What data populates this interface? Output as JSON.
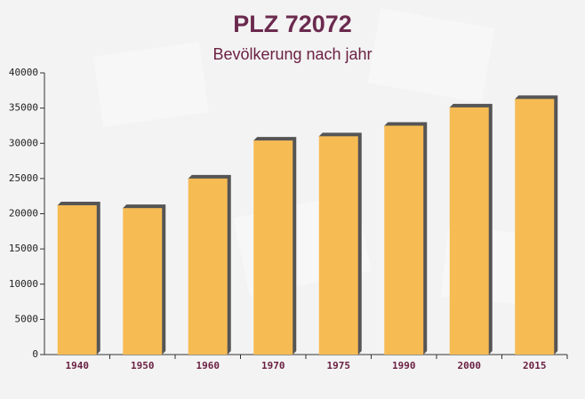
{
  "chart_data": {
    "type": "bar",
    "title": "PLZ 72072",
    "subtitle": "Bevölkerung nach jahr",
    "categories": [
      "1940",
      "1950",
      "1960",
      "1970",
      "1975",
      "1990",
      "2000",
      "2015"
    ],
    "values": [
      21200,
      20800,
      25000,
      30400,
      31000,
      32500,
      35100,
      36300
    ],
    "color": "#f7bb54",
    "ylim": [
      0,
      40000
    ],
    "yticks": [
      0,
      5000,
      10000,
      15000,
      20000,
      25000,
      30000,
      35000,
      40000
    ]
  }
}
